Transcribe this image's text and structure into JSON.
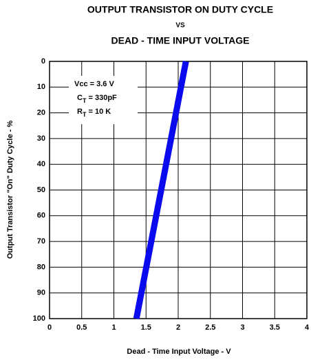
{
  "chart_data": {
    "type": "line",
    "title": "OUTPUT TRANSISTOR ON DUTY CYCLE",
    "subtitle": "VS",
    "title2": "DEAD - TIME INPUT VOLTAGE",
    "xlabel": "Dead - Time Input Voltage - V",
    "ylabel": "Output Transistor \"On\" Duty Cycle - %",
    "series": [
      {
        "name": "Duty Cycle",
        "color": "#0a0aee",
        "x": [
          1.35,
          2.12
        ],
        "values": [
          100,
          0
        ]
      }
    ],
    "xlim": [
      0,
      4
    ],
    "xticks": [
      0,
      0.5,
      1,
      1.5,
      2,
      2.5,
      3,
      3.5,
      4
    ],
    "ylim": [
      0,
      100
    ],
    "yticks": [
      0,
      10,
      20,
      30,
      40,
      50,
      60,
      70,
      80,
      90,
      100
    ],
    "y_inverted": true,
    "grid": true,
    "annotations": [
      {
        "main": "Vcc = 3.6 V"
      },
      {
        "main": "C",
        "sub": "T",
        "rest": " = 330pF"
      },
      {
        "main": "R",
        "sub": "T",
        "rest": " = 10 K"
      }
    ]
  }
}
